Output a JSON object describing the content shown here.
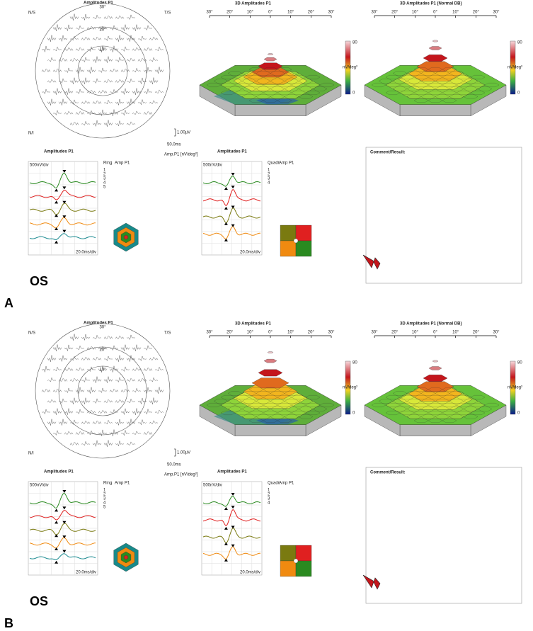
{
  "panels": [
    {
      "label": "A",
      "eye": "OS",
      "trace_array": {
        "title": "Amplitudes P1",
        "quadrants": [
          "N/S",
          "T/S",
          "N/I"
        ],
        "ring_labels": [
          "30°",
          "20°",
          "10°"
        ],
        "amp_scale": "1.00µV",
        "time_scale": "50.0ms",
        "unit": "Amp.P1 [nV/deg²]"
      },
      "surface": {
        "title": "3D Amplitudes P1",
        "xticks": [
          "30°",
          "20°",
          "10°",
          "0°",
          "10°",
          "20°",
          "30°"
        ],
        "cbar_max": "80",
        "cbar_unit": "nV/deg²",
        "cbar_min": "0"
      },
      "normal": {
        "title": "3D Amplitudes P1 (Normal DB)",
        "xticks": [
          "30°",
          "20°",
          "10°",
          "0°",
          "10°",
          "20°",
          "30°"
        ],
        "cbar_max": "80",
        "cbar_unit": "nV/deg²",
        "cbar_min": "0"
      },
      "ring_traces": {
        "title": "Amplitudes P1",
        "y_scale": "500nV/div",
        "x_scale": "20.0ms/div",
        "table_header": [
          "Ring",
          "Amp P1"
        ],
        "table_rows": [
          "1",
          "2",
          "3",
          "4",
          "5"
        ]
      },
      "sector_traces": {
        "title": "Amplitudes P1",
        "y_scale": "500nV/div",
        "x_scale": "20.0ms/div",
        "table_header": [
          "Quadr.",
          "Amp P1"
        ],
        "table_rows": [
          "1",
          "2",
          "3",
          "4"
        ]
      },
      "comment": "Comment/Result:"
    },
    {
      "label": "B",
      "eye": "OS",
      "trace_array": {
        "title": "Amplitudes P1",
        "quadrants": [
          "N/S",
          "T/S",
          "N/I"
        ],
        "ring_labels": [
          "30°",
          "20°",
          "10°"
        ],
        "amp_scale": "1.00µV",
        "time_scale": "50.0ms",
        "unit": "Amp.P1 [nV/deg²]"
      },
      "surface": {
        "title": "3D Amplitudes P1",
        "xticks": [
          "30°",
          "20°",
          "10°",
          "0°",
          "10°",
          "20°",
          "30°"
        ],
        "cbar_max": "80",
        "cbar_unit": "nV/deg²",
        "cbar_min": "0"
      },
      "normal": {
        "title": "3D Amplitudes P1 (Normal DB)",
        "xticks": [
          "30°",
          "20°",
          "10°",
          "0°",
          "10°",
          "20°",
          "30°"
        ],
        "cbar_max": "80",
        "cbar_unit": "nV/deg²",
        "cbar_min": "0"
      },
      "ring_traces": {
        "title": "Amplitudes P1",
        "y_scale": "500nV/div",
        "x_scale": "20.0ms/div",
        "table_header": [
          "Ring",
          "Amp P1"
        ],
        "table_rows": [
          "1",
          "2",
          "3",
          "4",
          "5"
        ]
      },
      "sector_traces": {
        "title": "Amplitudes P1",
        "y_scale": "500nV/div",
        "x_scale": "20.0ms/div",
        "table_header": [
          "Quadr.",
          "Amp P1"
        ],
        "table_rows": [
          "1",
          "2",
          "3",
          "4"
        ]
      },
      "comment": "Comment/Result:"
    }
  ]
}
